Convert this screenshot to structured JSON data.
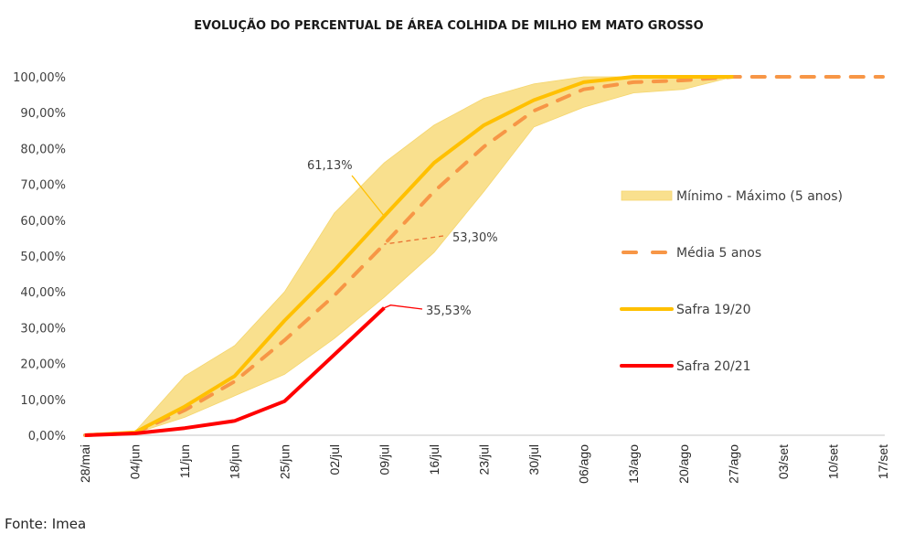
{
  "chart_data": {
    "type": "line",
    "title": "EVOLUÇÃO DO PERCENTUAL DE ÁREA COLHIDA DE MILHO EM MATO GROSSO",
    "xlabel": "",
    "ylabel": "",
    "ylim": [
      0,
      100
    ],
    "y_ticks": [
      "0,00%",
      "10,00%",
      "20,00%",
      "30,00%",
      "40,00%",
      "50,00%",
      "60,00%",
      "70,00%",
      "80,00%",
      "90,00%",
      "100,00%"
    ],
    "y_tick_values": [
      0,
      10,
      20,
      30,
      40,
      50,
      60,
      70,
      80,
      90,
      100
    ],
    "categories": [
      "28/mai",
      "04/jun",
      "11/jun",
      "18/jun",
      "25/jun",
      "02/jul",
      "09/jul",
      "16/jul",
      "23/jul",
      "30/jul",
      "06/ago",
      "13/ago",
      "20/ago",
      "27/ago",
      "03/set",
      "10/set",
      "17/set"
    ],
    "grid": false,
    "legend_position": "right",
    "band": {
      "name": "Mínimo - Máximo (5 anos)",
      "color": "#F9E08E",
      "min": [
        0,
        0.5,
        5,
        11,
        17,
        27,
        38.5,
        51,
        68,
        86,
        91.5,
        95.5,
        96.5,
        100
      ],
      "max": [
        0,
        1,
        16.5,
        25,
        40,
        62,
        76,
        86.5,
        94,
        98,
        100,
        100,
        100,
        100
      ]
    },
    "series": [
      {
        "name": "Média 5 anos",
        "color": "#F79646",
        "style": "dashed",
        "values": [
          0,
          0.7,
          7,
          15,
          26.5,
          39,
          53.3,
          68,
          80.5,
          90.5,
          96.5,
          98.5,
          99,
          100,
          100,
          100,
          100
        ]
      },
      {
        "name": "Safra 19/20",
        "color": "#FFC000",
        "style": "solid",
        "values": [
          0,
          0.8,
          8,
          16.5,
          32,
          46,
          61.13,
          76,
          86.5,
          93.5,
          98.5,
          100,
          100,
          100
        ]
      },
      {
        "name": "Safra 20/21",
        "color": "#FF0000",
        "style": "solid",
        "values": [
          0,
          0.5,
          2,
          4,
          9.5,
          22.5,
          35.53
        ]
      }
    ],
    "annotations": [
      {
        "text": "61,13%",
        "series": "Safra 19/20",
        "category": "09/jul",
        "value": 61.13
      },
      {
        "text": "53,30%",
        "series": "Média 5 anos",
        "category": "09/jul",
        "value": 53.3
      },
      {
        "text": "35,53%",
        "series": "Safra 20/21",
        "category": "09/jul",
        "value": 35.53
      }
    ],
    "source": "Fonte: Imea"
  }
}
